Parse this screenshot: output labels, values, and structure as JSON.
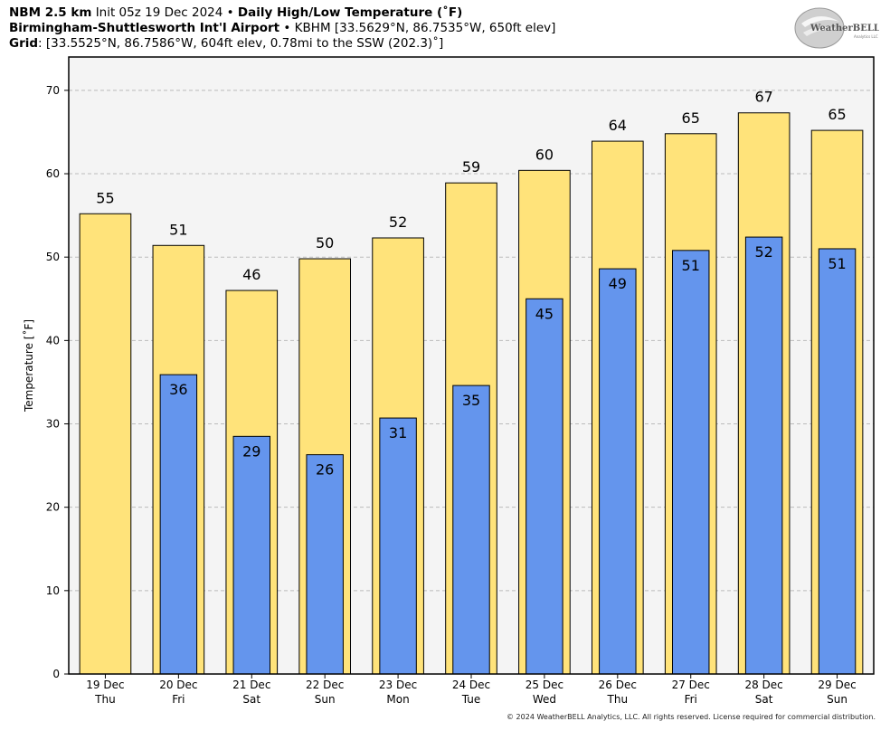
{
  "header": {
    "model": "NBM 2.5 km",
    "init": "Init 05z 19 Dec 2024",
    "bullet": "•",
    "product": "Daily High/Low Temperature (˚F)",
    "station": "Birmingham-Shuttlesworth Int'l Airport",
    "station_info": "KBHM [33.5629°N, 86.7535°W, 650ft elev]",
    "grid_label": "Grid",
    "grid_info": ": [33.5525°N, 86.7586°W, 604ft elev, 0.78mi to the SSW (202.3)˚]"
  },
  "logo": {
    "text": "WeatherBELL",
    "subtext": "Analytics LLC"
  },
  "copyright": "© 2024 WeatherBELL Analytics, LLC. All rights reserved. License required for commercial distribution.",
  "colors": {
    "high": "#FFE37A",
    "low": "#6495ED",
    "plot_bg": "#F4F4F4",
    "grid": "#BBBBBB"
  },
  "chart_data": {
    "type": "bar",
    "ylabel": "Temperature [˚F]",
    "ylim": [
      0,
      74
    ],
    "yticks": [
      0,
      10,
      20,
      30,
      40,
      50,
      60,
      70
    ],
    "grid": true,
    "categories": [
      {
        "date": "19 Dec",
        "day": "Thu"
      },
      {
        "date": "20 Dec",
        "day": "Fri"
      },
      {
        "date": "21 Dec",
        "day": "Sat"
      },
      {
        "date": "22 Dec",
        "day": "Sun"
      },
      {
        "date": "23 Dec",
        "day": "Mon"
      },
      {
        "date": "24 Dec",
        "day": "Tue"
      },
      {
        "date": "25 Dec",
        "day": "Wed"
      },
      {
        "date": "26 Dec",
        "day": "Thu"
      },
      {
        "date": "27 Dec",
        "day": "Fri"
      },
      {
        "date": "28 Dec",
        "day": "Sat"
      },
      {
        "date": "29 Dec",
        "day": "Sun"
      }
    ],
    "series": [
      {
        "key": "high",
        "values": [
          55.2,
          51.4,
          46.0,
          49.8,
          52.3,
          58.9,
          60.4,
          63.9,
          64.8,
          67.3,
          65.2
        ],
        "labels": [
          "55",
          "51",
          "46",
          "50",
          "52",
          "59",
          "60",
          "64",
          "65",
          "67",
          "65"
        ]
      },
      {
        "key": "low",
        "values": [
          null,
          35.9,
          28.5,
          26.3,
          30.7,
          34.6,
          45.0,
          48.6,
          50.8,
          52.4,
          51.0
        ],
        "labels": [
          null,
          "36",
          "29",
          "26",
          "31",
          "35",
          "45",
          "49",
          "51",
          "52",
          "51"
        ]
      }
    ]
  }
}
